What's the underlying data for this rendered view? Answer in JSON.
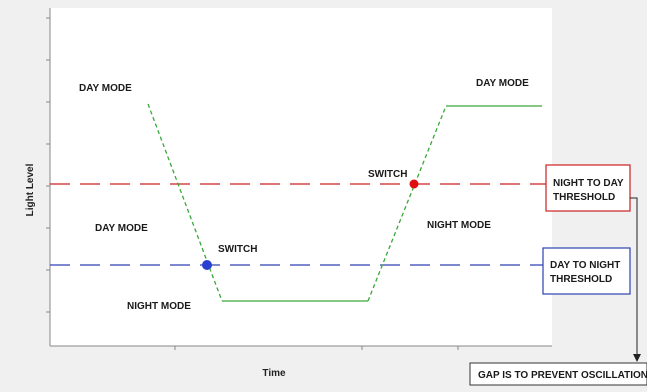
{
  "axes": {
    "ylabel": "Light Level",
    "xlabel": "Time"
  },
  "regions": {
    "day_mode_top_left": "DAY MODE",
    "day_mode_top_right": "DAY MODE",
    "day_mode_middle_left": "DAY MODE",
    "night_mode_bottom": "NIGHT MODE",
    "night_mode_middle_right": "NIGHT MODE"
  },
  "switch_points": {
    "day_to_night": {
      "label": "SWITCH",
      "color": "#2a3fd0"
    },
    "night_to_day": {
      "label": "SWITCH",
      "color": "#e01010"
    }
  },
  "thresholds": {
    "night_to_day": {
      "line1": "NIGHT TO DAY",
      "line2": "THRESHOLD",
      "line_color": "#cc2020",
      "box_border": "#cc2020"
    },
    "day_to_night": {
      "line1": "DAY TO NIGHT",
      "line2": "THRESHOLD",
      "line_color": "#3040b0",
      "box_border": "#3040b0"
    }
  },
  "note": {
    "text": "GAP IS TO PREVENT OSCILLATION"
  },
  "light_curve_color": "#3aa83a"
}
